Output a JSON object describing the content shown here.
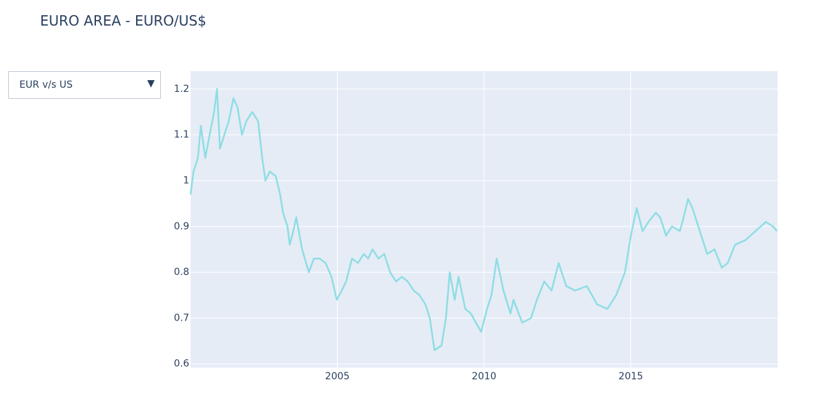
{
  "dropdown": {
    "selected": "EUR v/s US"
  },
  "chart_data": {
    "type": "line",
    "title": "EURO AREA - EURO/US$",
    "color": "#8fdde4",
    "grid": true,
    "xlim": [
      2000,
      2020
    ],
    "xticks": [
      2005,
      2010,
      2015
    ],
    "ylim": [
      0.592,
      1.239
    ],
    "yticks": [
      0.6,
      0.7,
      0.8,
      0.9,
      1,
      1.1,
      1.2
    ],
    "x": [
      2000.0,
      2000.1,
      2000.25,
      2000.35,
      2000.5,
      2000.65,
      2000.8,
      2000.9,
      2001.0,
      2001.15,
      2001.3,
      2001.46,
      2001.6,
      2001.75,
      2001.9,
      2002.1,
      2002.3,
      2002.44,
      2002.55,
      2002.7,
      2002.9,
      2003.05,
      2003.15,
      2003.3,
      2003.38,
      2003.5,
      2003.6,
      2003.8,
      2004.03,
      2004.2,
      2004.4,
      2004.6,
      2004.8,
      2004.98,
      2005.15,
      2005.3,
      2005.5,
      2005.7,
      2005.9,
      2006.05,
      2006.2,
      2006.4,
      2006.6,
      2006.8,
      2007.0,
      2007.2,
      2007.4,
      2007.6,
      2007.8,
      2008.0,
      2008.15,
      2008.31,
      2008.55,
      2008.7,
      2008.83,
      2009.0,
      2009.13,
      2009.36,
      2009.55,
      2009.72,
      2009.9,
      2010.1,
      2010.25,
      2010.43,
      2010.66,
      2010.9,
      2011.0,
      2011.3,
      2011.6,
      2011.8,
      2012.05,
      2012.3,
      2012.54,
      2012.8,
      2013.1,
      2013.5,
      2013.85,
      2014.2,
      2014.5,
      2014.8,
      2015.0,
      2015.2,
      2015.4,
      2015.6,
      2015.85,
      2016.0,
      2016.2,
      2016.4,
      2016.67,
      2016.8,
      2016.95,
      2017.1,
      2017.4,
      2017.6,
      2017.85,
      2018.1,
      2018.3,
      2018.55,
      2018.9,
      2019.25,
      2019.6,
      2019.85,
      2019.98
    ],
    "values": [
      0.97,
      1.02,
      1.05,
      1.12,
      1.05,
      1.1,
      1.15,
      1.2,
      1.07,
      1.1,
      1.13,
      1.18,
      1.16,
      1.1,
      1.13,
      1.15,
      1.13,
      1.05,
      1.0,
      1.02,
      1.01,
      0.97,
      0.93,
      0.9,
      0.86,
      0.89,
      0.92,
      0.85,
      0.8,
      0.83,
      0.83,
      0.82,
      0.79,
      0.74,
      0.76,
      0.78,
      0.83,
      0.82,
      0.84,
      0.83,
      0.85,
      0.83,
      0.84,
      0.8,
      0.78,
      0.79,
      0.78,
      0.76,
      0.75,
      0.73,
      0.7,
      0.63,
      0.64,
      0.7,
      0.8,
      0.74,
      0.79,
      0.72,
      0.71,
      0.69,
      0.67,
      0.72,
      0.75,
      0.83,
      0.76,
      0.71,
      0.74,
      0.69,
      0.7,
      0.74,
      0.78,
      0.76,
      0.82,
      0.77,
      0.76,
      0.77,
      0.73,
      0.72,
      0.75,
      0.8,
      0.88,
      0.94,
      0.89,
      0.91,
      0.93,
      0.92,
      0.88,
      0.9,
      0.89,
      0.92,
      0.96,
      0.94,
      0.88,
      0.84,
      0.85,
      0.81,
      0.82,
      0.86,
      0.87,
      0.89,
      0.91,
      0.9,
      0.89
    ]
  }
}
